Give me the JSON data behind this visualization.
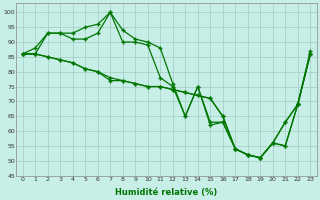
{
  "xlabel": "Humidité relative (%)",
  "background_color": "#c8eee8",
  "grid_color": "#a0ccc0",
  "line_color": "#007700",
  "xlim": [
    -0.5,
    23.5
  ],
  "ylim": [
    45,
    103
  ],
  "yticks": [
    45,
    50,
    55,
    60,
    65,
    70,
    75,
    80,
    85,
    90,
    95,
    100
  ],
  "xticks": [
    0,
    1,
    2,
    3,
    4,
    5,
    6,
    7,
    8,
    9,
    10,
    11,
    12,
    13,
    14,
    15,
    16,
    17,
    18,
    19,
    20,
    21,
    22,
    23
  ],
  "series": [
    [
      86,
      88,
      93,
      93,
      93,
      95,
      96,
      100,
      94,
      91,
      90,
      88,
      76,
      65,
      75,
      63,
      63,
      54,
      52,
      51,
      56,
      63,
      69,
      87
    ],
    [
      86,
      86,
      93,
      93,
      91,
      91,
      93,
      100,
      90,
      90,
      89,
      78,
      75,
      65,
      75,
      62,
      63,
      54,
      52,
      51,
      56,
      63,
      69,
      86
    ],
    [
      86,
      86,
      85,
      84,
      83,
      81,
      80,
      78,
      77,
      76,
      75,
      75,
      74,
      73,
      72,
      71,
      65,
      54,
      52,
      51,
      56,
      55,
      69,
      86
    ],
    [
      86,
      86,
      85,
      84,
      83,
      81,
      80,
      77,
      77,
      76,
      75,
      75,
      74,
      73,
      72,
      71,
      65,
      54,
      52,
      51,
      56,
      55,
      69,
      86
    ]
  ]
}
